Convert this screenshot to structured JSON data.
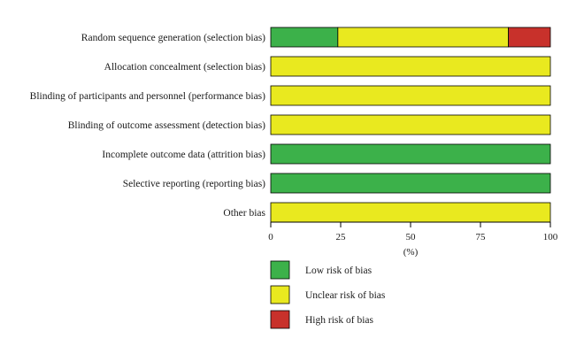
{
  "chart_data": {
    "type": "bar",
    "orientation": "horizontal",
    "stacked": true,
    "categories": [
      "Random sequence generation (selection bias)",
      "Allocation concealment (selection bias)",
      "Blinding of participants and personnel (performance bias)",
      "Blinding of outcome assessment (detection bias)",
      "Incomplete outcome data (attrition bias)",
      "Selective reporting (reporting bias)",
      "Other bias"
    ],
    "series": [
      {
        "name": "Low risk of bias",
        "color": "#3cb14a",
        "values": [
          24,
          0,
          0,
          0,
          100,
          100,
          0
        ]
      },
      {
        "name": "Unclear risk of bias",
        "color": "#e9e91f",
        "values": [
          61,
          100,
          100,
          100,
          0,
          0,
          100
        ]
      },
      {
        "name": "High risk of bias",
        "color": "#c8312b",
        "values": [
          15,
          0,
          0,
          0,
          0,
          0,
          0
        ]
      }
    ],
    "xlim": [
      0,
      100
    ],
    "xticks": [
      "0",
      "25",
      "50",
      "75",
      "100"
    ],
    "xlabel": "(%)",
    "ylabel": "",
    "title": "",
    "legend_position": "bottom",
    "grid": false
  }
}
